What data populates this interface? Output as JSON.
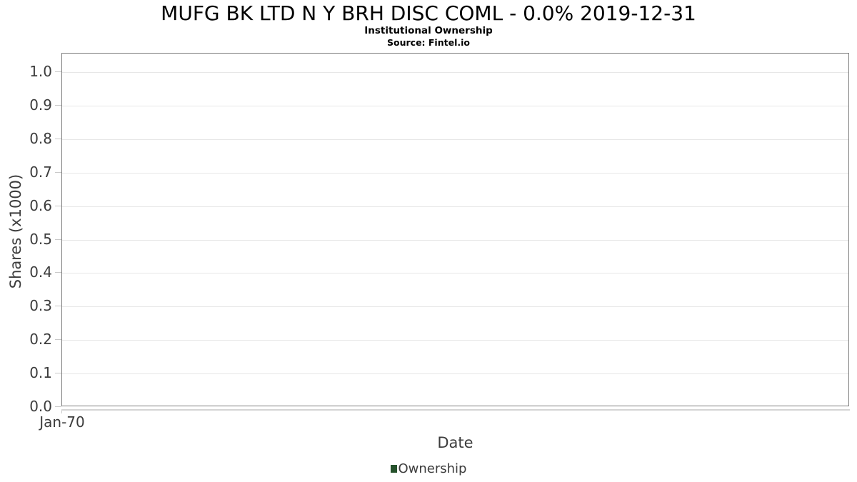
{
  "header": {
    "title": "MUFG BK LTD N Y BRH DISC COML - 0.0% 2019-12-31",
    "subtitle": "Institutional Ownership",
    "source": "Source: Fintel.io"
  },
  "axes": {
    "y_label": "Shares (x1000)",
    "x_label": "Date",
    "x_ticks": [
      "Jan-70"
    ],
    "y_ticks": [
      "1.0",
      "0.9",
      "0.8",
      "0.7",
      "0.6",
      "0.5",
      "0.4",
      "0.3",
      "0.2",
      "0.1",
      "0.0"
    ]
  },
  "legend": {
    "items": [
      {
        "label": "Ownership",
        "color": "#26522c"
      }
    ]
  },
  "colors": {
    "plot_border": "#7d7d7d",
    "gridline": "#e7e7e7",
    "tick": "#c9c9c9",
    "axis_text": "#3c3c3c",
    "title_text": "#000000",
    "series_green": "#26522c"
  },
  "chart_data": {
    "type": "line",
    "title": "MUFG BK LTD N Y BRH DISC COML - 0.0% 2019-12-31",
    "subtitle": "Institutional Ownership",
    "source": "Source: Fintel.io",
    "xlabel": "Date",
    "ylabel": "Shares (x1000)",
    "x_tick_labels": [
      "Jan-70"
    ],
    "y_tick_values": [
      0.0,
      0.1,
      0.2,
      0.3,
      0.4,
      0.5,
      0.6,
      0.7,
      0.8,
      0.9,
      1.0
    ],
    "ylim": [
      0.0,
      1.055
    ],
    "grid": "horizontal",
    "legend_position": "bottom",
    "series": [
      {
        "name": "Ownership",
        "color": "#26522c",
        "x": [],
        "values": []
      }
    ]
  }
}
